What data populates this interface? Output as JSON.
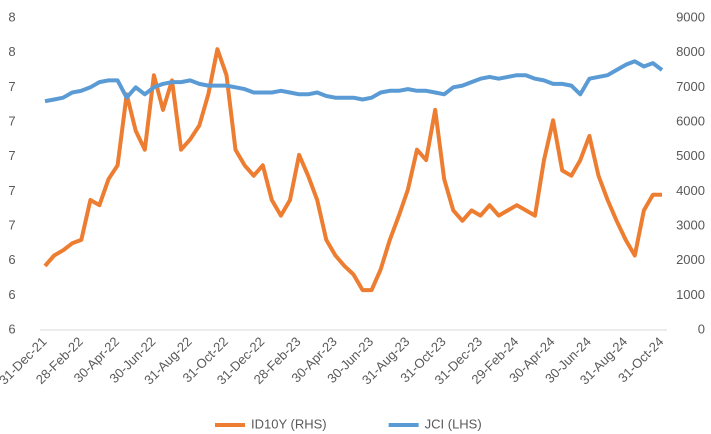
{
  "chart_data": {
    "type": "line",
    "categories": [
      "31-Dec-21",
      null,
      null,
      null,
      "28-Feb-22",
      null,
      null,
      null,
      "30-Apr-22",
      null,
      null,
      null,
      "30-Jun-22",
      null,
      null,
      null,
      "31-Aug-22",
      null,
      null,
      null,
      "31-Oct-22",
      null,
      null,
      null,
      "31-Dec-22",
      null,
      null,
      null,
      "28-Feb-23",
      null,
      null,
      null,
      "30-Apr-23",
      null,
      null,
      null,
      "30-Jun-23",
      null,
      null,
      null,
      "31-Aug-23",
      null,
      null,
      null,
      "31-Oct-23",
      null,
      null,
      null,
      "31-Dec-23",
      null,
      null,
      null,
      "29-Feb-24",
      null,
      null,
      null,
      "30-Apr-24",
      null,
      null,
      null,
      "30-Jun-24",
      null,
      null,
      null,
      "31-Aug-24",
      null,
      null,
      null,
      "31-Oct-24"
    ],
    "series": [
      {
        "name": "ID10Y (RHS)",
        "color": "#ed7d31",
        "axis": "y",
        "values": [
          6.37,
          6.43,
          6.46,
          6.5,
          6.52,
          6.75,
          6.72,
          6.87,
          6.95,
          7.36,
          7.15,
          7.04,
          7.47,
          7.27,
          7.44,
          7.04,
          7.1,
          7.18,
          7.36,
          7.62,
          7.47,
          7.04,
          6.95,
          6.89,
          6.95,
          6.75,
          6.66,
          6.75,
          7.01,
          6.89,
          6.75,
          6.52,
          6.43,
          6.37,
          6.32,
          6.23,
          6.23,
          6.35,
          6.52,
          6.66,
          6.81,
          7.04,
          6.98,
          7.27,
          6.87,
          6.69,
          6.63,
          6.69,
          6.66,
          6.72,
          6.66,
          6.69,
          6.72,
          6.69,
          6.66,
          6.98,
          7.21,
          6.92,
          6.89,
          6.98,
          7.12,
          6.89,
          6.75,
          6.63,
          6.52,
          6.43,
          6.69,
          6.78,
          6.78
        ]
      },
      {
        "name": "JCI (LHS)",
        "color": "#5b9bd5",
        "axis": "y2",
        "values": [
          6600,
          6650,
          6700,
          6850,
          6900,
          7000,
          7150,
          7200,
          7200,
          6700,
          7000,
          6800,
          7000,
          7100,
          7150,
          7150,
          7200,
          7100,
          7050,
          7050,
          7050,
          7000,
          6950,
          6850,
          6850,
          6850,
          6900,
          6850,
          6800,
          6800,
          6850,
          6750,
          6700,
          6700,
          6700,
          6650,
          6700,
          6850,
          6900,
          6900,
          6950,
          6900,
          6900,
          6850,
          6800,
          7000,
          7050,
          7150,
          7250,
          7300,
          7250,
          7300,
          7350,
          7350,
          7250,
          7200,
          7100,
          7100,
          7050,
          6800,
          7250,
          7300,
          7350,
          7500,
          7650,
          7750,
          7600,
          7700,
          7500
        ]
      }
    ],
    "ylim": [
      6.0,
      7.8
    ],
    "yticks": [
      {
        "value": 6.0,
        "label": "6"
      },
      {
        "value": 6.2,
        "label": "6"
      },
      {
        "value": 6.4,
        "label": "6"
      },
      {
        "value": 6.6,
        "label": "7"
      },
      {
        "value": 6.8,
        "label": "7"
      },
      {
        "value": 7.0,
        "label": "7"
      },
      {
        "value": 7.2,
        "label": "7"
      },
      {
        "value": 7.4,
        "label": "7"
      },
      {
        "value": 7.6,
        "label": "8"
      },
      {
        "value": 7.8,
        "label": "8"
      }
    ],
    "y2lim": [
      0,
      9000
    ],
    "y2ticks": [
      0,
      1000,
      2000,
      3000,
      4000,
      5000,
      6000,
      7000,
      8000,
      9000
    ],
    "legend": "bottom"
  }
}
